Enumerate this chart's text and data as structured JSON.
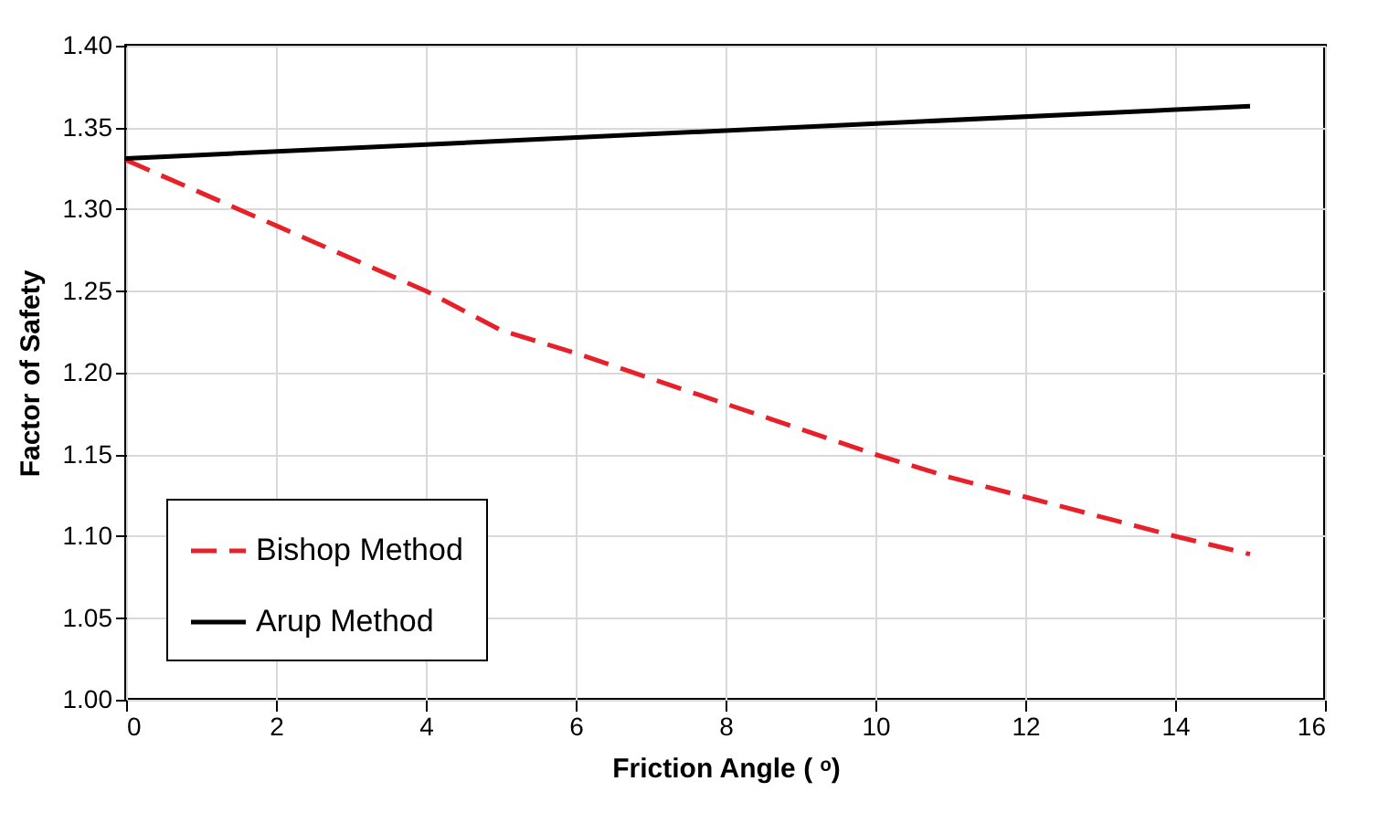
{
  "chart_data": {
    "type": "line",
    "xlabel": "Friction Angle ( ᵒ)",
    "ylabel": "Factor of Safety",
    "series": [
      {
        "name": "Bishop Method",
        "color": "#e8202a",
        "line_style": "dashed",
        "x": [
          0,
          2,
          4,
          5,
          6,
          8,
          10,
          11,
          12,
          14,
          15
        ],
        "values": [
          1.33,
          1.29,
          1.25,
          1.226,
          1.212,
          1.181,
          1.15,
          1.136,
          1.124,
          1.1,
          1.089
        ]
      },
      {
        "name": "Arup Method",
        "color": "#000000",
        "line_style": "solid",
        "x": [
          0,
          15
        ],
        "values": [
          1.331,
          1.363
        ]
      }
    ],
    "xlim": [
      0,
      16
    ],
    "xticks": [
      0,
      2,
      4,
      6,
      8,
      10,
      12,
      14,
      16
    ],
    "ylim": [
      1.0,
      1.4
    ],
    "yticks": [
      {
        "value": 1.0,
        "label": "1.00"
      },
      {
        "value": 1.05,
        "label": "1.05"
      },
      {
        "value": 1.1,
        "label": "1.10"
      },
      {
        "value": 1.15,
        "label": "1.15"
      },
      {
        "value": 1.2,
        "label": "1.20"
      },
      {
        "value": 1.25,
        "label": "1.25"
      },
      {
        "value": 1.3,
        "label": "1.30"
      },
      {
        "value": 1.35,
        "label": "1.35"
      },
      {
        "value": 1.4,
        "label": "1.40"
      }
    ],
    "grid": true,
    "legend": "bottom left",
    "marker": "none"
  }
}
